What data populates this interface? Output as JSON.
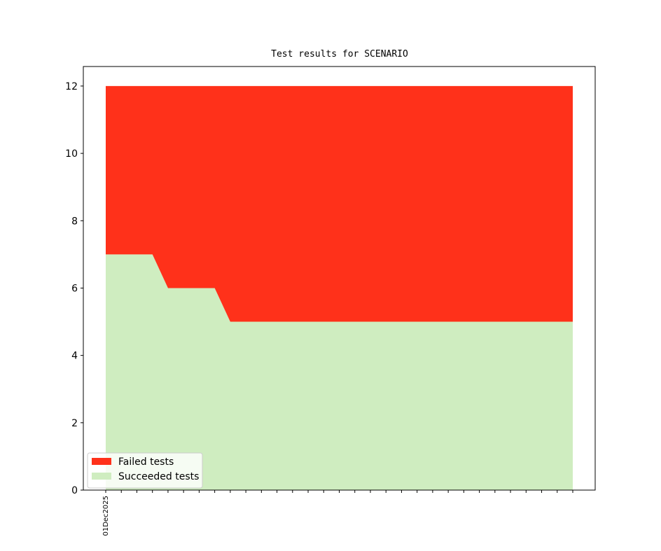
{
  "chart_data": {
    "type": "stacked_area",
    "title": "Test results for SCENARIO",
    "categories": [
      "01Dec2025",
      null,
      null,
      null,
      null,
      null,
      null,
      null,
      null,
      null,
      null,
      null,
      null,
      null,
      null,
      null,
      null,
      null,
      null,
      null,
      null,
      null,
      null,
      null,
      null,
      null,
      null,
      null,
      null,
      null,
      null
    ],
    "series": [
      {
        "name": "Succeeded tests",
        "color": "#cfedc0",
        "values": [
          7,
          7,
          7,
          7,
          6,
          6,
          6,
          6,
          5,
          5,
          5,
          5,
          5,
          5,
          5,
          5,
          5,
          5,
          5,
          5,
          5,
          5,
          5,
          5,
          5,
          5,
          5,
          5,
          5,
          5,
          5
        ]
      },
      {
        "name": "Failed tests",
        "color": "#ff311a",
        "values": [
          5,
          5,
          5,
          5,
          6,
          6,
          6,
          6,
          7,
          7,
          7,
          7,
          7,
          7,
          7,
          7,
          7,
          7,
          7,
          7,
          7,
          7,
          7,
          7,
          7,
          7,
          7,
          7,
          7,
          7,
          7
        ]
      }
    ],
    "ylim": [
      0,
      12.58
    ],
    "yticks": [
      0,
      2,
      4,
      6,
      8,
      10,
      12
    ],
    "legend": "lower left"
  }
}
